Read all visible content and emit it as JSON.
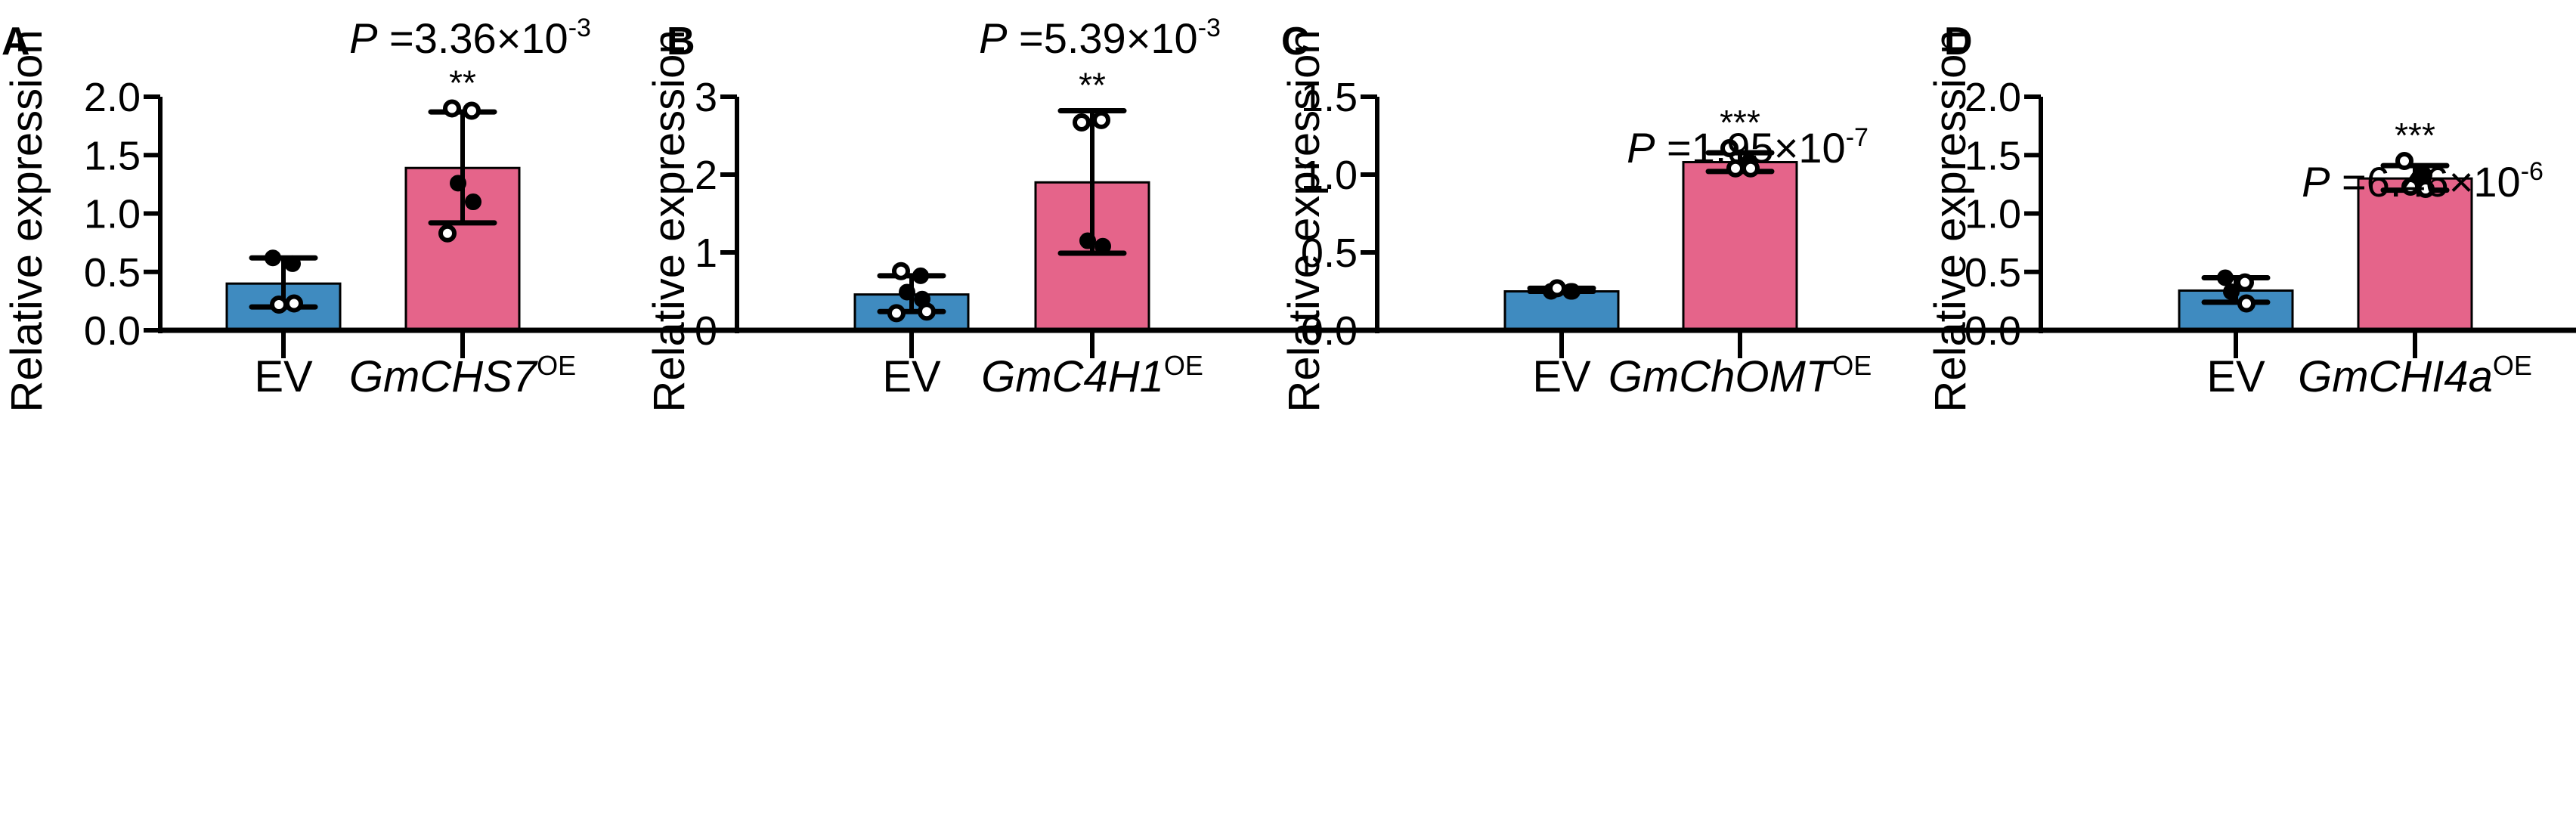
{
  "figure": {
    "colors": {
      "ev_bar": "#3F8BC0",
      "oe_bar": "#E5648A",
      "ink": "#000000"
    }
  },
  "chart_data": [
    {
      "type": "bar",
      "panel": "A",
      "title": "",
      "xlabel": "",
      "ylabel": "Relative expression",
      "ylim": [
        0,
        2.0
      ],
      "yticks": [
        "0.0",
        "0.5",
        "1.0",
        "1.5",
        "2.0"
      ],
      "ytick_values": [
        0,
        0.5,
        1.0,
        1.5,
        2.0
      ],
      "categories": [
        {
          "label": "EV",
          "italic": false,
          "superscript": ""
        },
        {
          "label": "GmCHS7",
          "italic": true,
          "superscript": "OE"
        }
      ],
      "values": [
        0.4,
        1.39
      ],
      "error_low": [
        0.2,
        0.92
      ],
      "error_high": [
        0.62,
        1.87
      ],
      "points": [
        [
          {
            "v": 0.62,
            "filled": true
          },
          {
            "v": 0.57,
            "filled": true
          },
          {
            "v": 0.22,
            "filled": false
          },
          {
            "v": 0.23,
            "filled": false
          }
        ],
        [
          {
            "v": 1.9,
            "filled": false
          },
          {
            "v": 1.88,
            "filled": false
          },
          {
            "v": 1.26,
            "filled": true
          },
          {
            "v": 1.1,
            "filled": true
          },
          {
            "v": 0.83,
            "filled": false
          }
        ]
      ],
      "annotation": {
        "p_prefix": "P",
        "p_text": " =3.36×10",
        "p_exp": "-3",
        "stars": "**"
      }
    },
    {
      "type": "bar",
      "panel": "B",
      "title": "",
      "xlabel": "",
      "ylabel": "Relative expression",
      "ylim": [
        0,
        3
      ],
      "yticks": [
        "0",
        "1",
        "2",
        "3"
      ],
      "ytick_values": [
        0,
        1,
        2,
        3
      ],
      "categories": [
        {
          "label": "EV",
          "italic": false,
          "superscript": ""
        },
        {
          "label": "GmC4H1",
          "italic": true,
          "superscript": "OE"
        }
      ],
      "values": [
        0.46,
        1.9
      ],
      "error_low": [
        0.24,
        0.99
      ],
      "error_high": [
        0.7,
        2.82
      ],
      "points": [
        [
          {
            "v": 0.76,
            "filled": false
          },
          {
            "v": 0.7,
            "filled": true
          },
          {
            "v": 0.49,
            "filled": true
          },
          {
            "v": 0.4,
            "filled": true
          },
          {
            "v": 0.22,
            "filled": false
          },
          {
            "v": 0.24,
            "filled": false
          }
        ],
        [
          {
            "v": 2.67,
            "filled": false
          },
          {
            "v": 2.7,
            "filled": false
          },
          {
            "v": 1.15,
            "filled": true
          },
          {
            "v": 1.08,
            "filled": true
          }
        ]
      ],
      "annotation": {
        "p_prefix": "P",
        "p_text": " =5.39×10",
        "p_exp": "-3",
        "stars": "**"
      }
    },
    {
      "type": "bar",
      "panel": "C",
      "title": "",
      "xlabel": "",
      "ylabel": "Relative expression",
      "ylim": [
        0,
        1.5
      ],
      "yticks": [
        "0.0",
        "0.5",
        "1.0",
        "1.5"
      ],
      "ytick_values": [
        0,
        0.5,
        1.0,
        1.5
      ],
      "categories": [
        {
          "label": "EV",
          "italic": false,
          "superscript": ""
        },
        {
          "label": "GmChOMT",
          "italic": true,
          "superscript": "OE"
        }
      ],
      "values": [
        0.25,
        1.08
      ],
      "error_low": [
        0.25,
        1.02
      ],
      "error_high": [
        0.27,
        1.14
      ],
      "points": [
        [
          {
            "v": 0.25,
            "filled": true
          },
          {
            "v": 0.25,
            "filled": true
          },
          {
            "v": 0.27,
            "filled": false
          },
          {
            "v": 0.25,
            "filled": true
          }
        ],
        [
          {
            "v": 1.17,
            "filled": false
          },
          {
            "v": 1.08,
            "filled": true
          },
          {
            "v": 1.04,
            "filled": false
          },
          {
            "v": 1.04,
            "filled": false
          }
        ]
      ],
      "annotation": {
        "p_prefix": "P",
        "p_text": " =1.95×10",
        "p_exp": "-7",
        "stars": "***"
      }
    },
    {
      "type": "bar",
      "panel": "D",
      "title": "",
      "xlabel": "",
      "ylabel": "Relative expression",
      "ylim": [
        0,
        2.0
      ],
      "yticks": [
        "0.0",
        "0.5",
        "1.0",
        "1.5",
        "2.0"
      ],
      "ytick_values": [
        0,
        0.5,
        1.0,
        1.5,
        2.0
      ],
      "categories": [
        {
          "label": "EV",
          "italic": false,
          "superscript": ""
        },
        {
          "label": "GmCHI4a",
          "italic": true,
          "superscript": "OE"
        }
      ],
      "values": [
        0.34,
        1.3
      ],
      "error_low": [
        0.24,
        1.2
      ],
      "error_high": [
        0.45,
        1.41
      ],
      "points": [
        [
          {
            "v": 0.45,
            "filled": true
          },
          {
            "v": 0.41,
            "filled": false
          },
          {
            "v": 0.33,
            "filled": true
          },
          {
            "v": 0.23,
            "filled": false
          }
        ],
        [
          {
            "v": 1.45,
            "filled": false
          },
          {
            "v": 1.33,
            "filled": true
          },
          {
            "v": 1.23,
            "filled": false
          },
          {
            "v": 1.21,
            "filled": false
          }
        ]
      ],
      "annotation": {
        "p_prefix": "P",
        "p_text": " =6.46×10",
        "p_exp": "-6",
        "stars": "***"
      }
    }
  ]
}
